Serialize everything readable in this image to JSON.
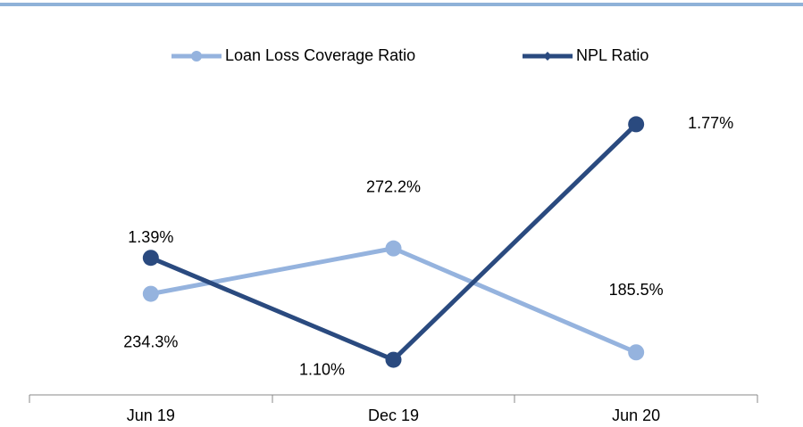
{
  "chart_data": {
    "type": "line",
    "categories": [
      "Jun 19",
      "Dec 19",
      "Jun 20"
    ],
    "series": [
      {
        "name": "Loan Loss Coverage Ratio",
        "color": "#95b3de",
        "values": [
          234.3,
          272.2,
          185.5
        ],
        "value_labels": [
          "234.3%",
          "272.2%",
          "185.5%"
        ]
      },
      {
        "name": "NPL Ratio",
        "color": "#2a4a7f",
        "axis": "y2",
        "values": [
          1.39,
          1.1,
          1.77
        ],
        "value_labels": [
          "1.39%",
          "1.10%",
          "1.77%"
        ]
      }
    ],
    "ylim": [
      150,
      405
    ],
    "y2lim": [
      1.0,
      1.87
    ],
    "legend": "top"
  }
}
